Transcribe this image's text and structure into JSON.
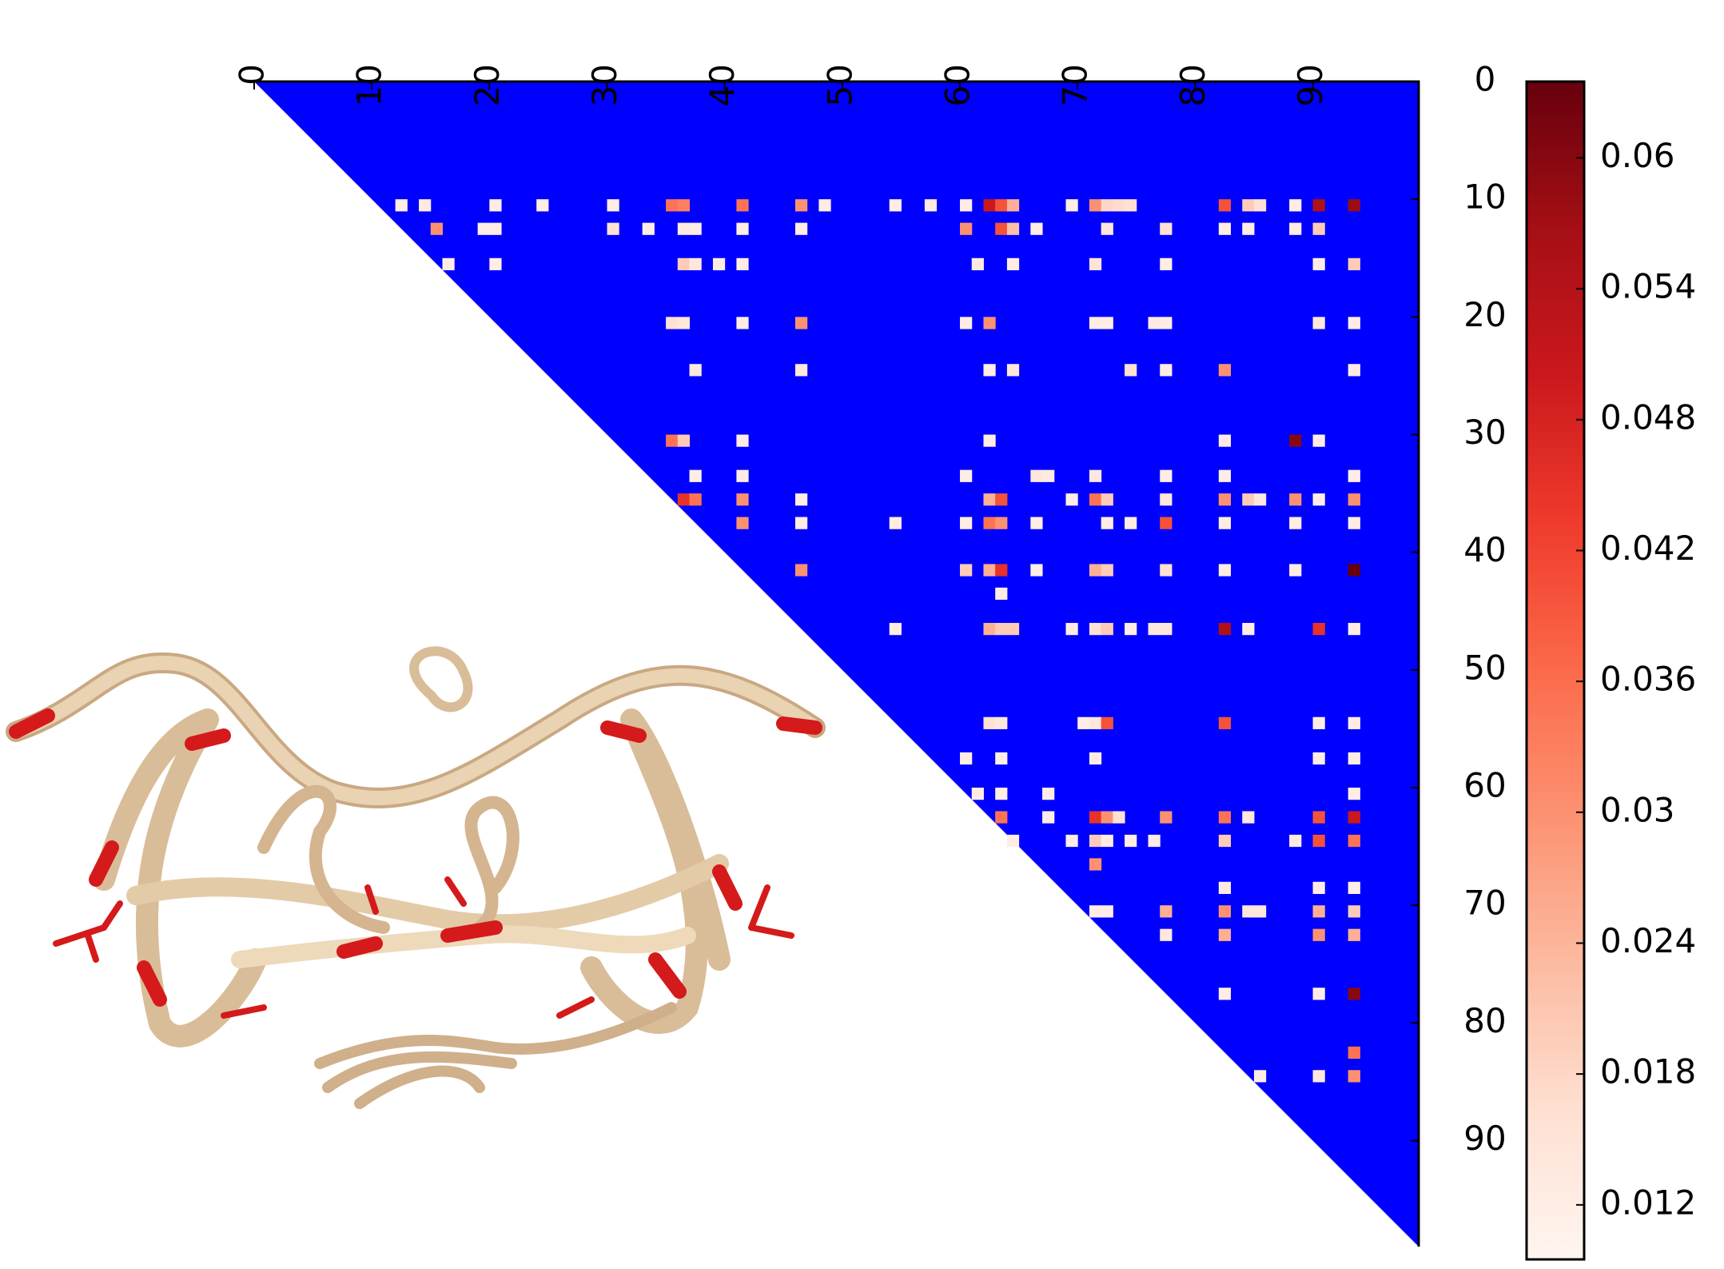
{
  "chart_data": {
    "type": "triangular-heatmap",
    "xlim": [
      0,
      99
    ],
    "ylim": [
      0,
      99
    ],
    "xticks": [
      0,
      10,
      20,
      30,
      40,
      50,
      60,
      70,
      80,
      90
    ],
    "yticks": [
      0,
      10,
      20,
      30,
      40,
      50,
      60,
      70,
      80,
      90
    ],
    "background_color": "#0000ff",
    "colormap": [
      "#fff5f0",
      "#fee0d2",
      "#fcbba1",
      "#fc9272",
      "#fb6a4a",
      "#ef3b2c",
      "#cb181d",
      "#a50f15",
      "#67000d"
    ],
    "clim": [
      0.0095,
      0.0635
    ],
    "cticks": [
      0.012,
      0.018,
      0.024,
      0.03,
      0.036,
      0.042,
      0.048,
      0.054,
      0.06
    ],
    "cells": [
      [
        10,
        12,
        0.012
      ],
      [
        10,
        14,
        0.013
      ],
      [
        10,
        20,
        0.012
      ],
      [
        10,
        24,
        0.012
      ],
      [
        10,
        30,
        0.012
      ],
      [
        10,
        35,
        0.035
      ],
      [
        10,
        36,
        0.033
      ],
      [
        10,
        41,
        0.035
      ],
      [
        10,
        46,
        0.03
      ],
      [
        10,
        48,
        0.012
      ],
      [
        10,
        54,
        0.012
      ],
      [
        10,
        57,
        0.013
      ],
      [
        10,
        60,
        0.012
      ],
      [
        10,
        62,
        0.05
      ],
      [
        10,
        63,
        0.04
      ],
      [
        10,
        64,
        0.025
      ],
      [
        10,
        69,
        0.012
      ],
      [
        10,
        71,
        0.03
      ],
      [
        10,
        72,
        0.018
      ],
      [
        10,
        73,
        0.017
      ],
      [
        10,
        74,
        0.016
      ],
      [
        10,
        82,
        0.04
      ],
      [
        10,
        84,
        0.02
      ],
      [
        10,
        85,
        0.016
      ],
      [
        10,
        88,
        0.012
      ],
      [
        10,
        90,
        0.055
      ],
      [
        10,
        93,
        0.058
      ],
      [
        12,
        15,
        0.03
      ],
      [
        12,
        19,
        0.012
      ],
      [
        12,
        20,
        0.012
      ],
      [
        12,
        30,
        0.016
      ],
      [
        12,
        33,
        0.012
      ],
      [
        12,
        36,
        0.013
      ],
      [
        12,
        37,
        0.012
      ],
      [
        12,
        41,
        0.012
      ],
      [
        12,
        46,
        0.012
      ],
      [
        12,
        60,
        0.03
      ],
      [
        12,
        63,
        0.04
      ],
      [
        12,
        64,
        0.022
      ],
      [
        12,
        66,
        0.012
      ],
      [
        12,
        72,
        0.014
      ],
      [
        12,
        77,
        0.016
      ],
      [
        12,
        82,
        0.012
      ],
      [
        12,
        84,
        0.012
      ],
      [
        12,
        88,
        0.012
      ],
      [
        12,
        90,
        0.02
      ],
      [
        15,
        16,
        0.012
      ],
      [
        15,
        20,
        0.012
      ],
      [
        15,
        36,
        0.02
      ],
      [
        15,
        37,
        0.014
      ],
      [
        15,
        39,
        0.013
      ],
      [
        15,
        41,
        0.012
      ],
      [
        15,
        61,
        0.013
      ],
      [
        15,
        64,
        0.012
      ],
      [
        15,
        71,
        0.015
      ],
      [
        15,
        77,
        0.012
      ],
      [
        15,
        90,
        0.012
      ],
      [
        15,
        93,
        0.02
      ],
      [
        20,
        35,
        0.016
      ],
      [
        20,
        36,
        0.014
      ],
      [
        20,
        41,
        0.012
      ],
      [
        20,
        46,
        0.03
      ],
      [
        20,
        60,
        0.012
      ],
      [
        20,
        62,
        0.03
      ],
      [
        20,
        71,
        0.012
      ],
      [
        20,
        72,
        0.012
      ],
      [
        20,
        76,
        0.013
      ],
      [
        20,
        77,
        0.012
      ],
      [
        20,
        90,
        0.014
      ],
      [
        20,
        93,
        0.012
      ],
      [
        24,
        37,
        0.014
      ],
      [
        24,
        46,
        0.014
      ],
      [
        24,
        62,
        0.012
      ],
      [
        24,
        64,
        0.014
      ],
      [
        24,
        74,
        0.016
      ],
      [
        24,
        77,
        0.012
      ],
      [
        24,
        82,
        0.03
      ],
      [
        24,
        93,
        0.012
      ],
      [
        30,
        35,
        0.035
      ],
      [
        30,
        36,
        0.02
      ],
      [
        30,
        41,
        0.012
      ],
      [
        30,
        62,
        0.012
      ],
      [
        30,
        82,
        0.012
      ],
      [
        30,
        88,
        0.06
      ],
      [
        30,
        90,
        0.012
      ],
      [
        33,
        37,
        0.012
      ],
      [
        33,
        41,
        0.012
      ],
      [
        33,
        60,
        0.012
      ],
      [
        33,
        66,
        0.014
      ],
      [
        33,
        67,
        0.013
      ],
      [
        33,
        71,
        0.014
      ],
      [
        33,
        77,
        0.012
      ],
      [
        33,
        82,
        0.012
      ],
      [
        33,
        93,
        0.012
      ],
      [
        35,
        36,
        0.045
      ],
      [
        35,
        37,
        0.035
      ],
      [
        35,
        41,
        0.03
      ],
      [
        35,
        46,
        0.012
      ],
      [
        35,
        62,
        0.025
      ],
      [
        35,
        63,
        0.04
      ],
      [
        35,
        69,
        0.012
      ],
      [
        35,
        71,
        0.035
      ],
      [
        35,
        72,
        0.02
      ],
      [
        35,
        77,
        0.014
      ],
      [
        35,
        82,
        0.03
      ],
      [
        35,
        84,
        0.02
      ],
      [
        35,
        85,
        0.014
      ],
      [
        35,
        88,
        0.03
      ],
      [
        35,
        90,
        0.012
      ],
      [
        35,
        93,
        0.03
      ],
      [
        37,
        41,
        0.03
      ],
      [
        37,
        46,
        0.012
      ],
      [
        37,
        54,
        0.012
      ],
      [
        37,
        60,
        0.012
      ],
      [
        37,
        62,
        0.035
      ],
      [
        37,
        63,
        0.03
      ],
      [
        37,
        66,
        0.012
      ],
      [
        37,
        72,
        0.012
      ],
      [
        37,
        74,
        0.012
      ],
      [
        37,
        77,
        0.04
      ],
      [
        37,
        82,
        0.012
      ],
      [
        37,
        88,
        0.012
      ],
      [
        37,
        93,
        0.012
      ],
      [
        41,
        46,
        0.03
      ],
      [
        41,
        60,
        0.02
      ],
      [
        41,
        62,
        0.025
      ],
      [
        41,
        63,
        0.045
      ],
      [
        41,
        66,
        0.012
      ],
      [
        41,
        71,
        0.025
      ],
      [
        41,
        72,
        0.02
      ],
      [
        41,
        77,
        0.016
      ],
      [
        41,
        82,
        0.012
      ],
      [
        41,
        88,
        0.012
      ],
      [
        41,
        93,
        0.064
      ],
      [
        43,
        63,
        0.012
      ],
      [
        46,
        54,
        0.012
      ],
      [
        46,
        62,
        0.025
      ],
      [
        46,
        63,
        0.02
      ],
      [
        46,
        64,
        0.02
      ],
      [
        46,
        69,
        0.012
      ],
      [
        46,
        71,
        0.016
      ],
      [
        46,
        72,
        0.02
      ],
      [
        46,
        74,
        0.012
      ],
      [
        46,
        76,
        0.014
      ],
      [
        46,
        77,
        0.014
      ],
      [
        46,
        82,
        0.055
      ],
      [
        46,
        84,
        0.012
      ],
      [
        46,
        90,
        0.045
      ],
      [
        46,
        93,
        0.012
      ],
      [
        54,
        62,
        0.016
      ],
      [
        54,
        63,
        0.014
      ],
      [
        54,
        70,
        0.012
      ],
      [
        54,
        71,
        0.014
      ],
      [
        54,
        72,
        0.04
      ],
      [
        54,
        82,
        0.04
      ],
      [
        54,
        90,
        0.012
      ],
      [
        54,
        93,
        0.012
      ],
      [
        57,
        60,
        0.012
      ],
      [
        57,
        63,
        0.012
      ],
      [
        57,
        71,
        0.012
      ],
      [
        57,
        90,
        0.012
      ],
      [
        57,
        93,
        0.012
      ],
      [
        60,
        61,
        0.012
      ],
      [
        60,
        63,
        0.012
      ],
      [
        60,
        67,
        0.012
      ],
      [
        60,
        93,
        0.012
      ],
      [
        62,
        63,
        0.035
      ],
      [
        62,
        67,
        0.012
      ],
      [
        62,
        71,
        0.045
      ],
      [
        62,
        72,
        0.03
      ],
      [
        62,
        73,
        0.016
      ],
      [
        62,
        77,
        0.03
      ],
      [
        62,
        82,
        0.035
      ],
      [
        62,
        84,
        0.014
      ],
      [
        62,
        90,
        0.04
      ],
      [
        62,
        93,
        0.05
      ],
      [
        64,
        64,
        0.012
      ],
      [
        64,
        69,
        0.012
      ],
      [
        64,
        71,
        0.02
      ],
      [
        64,
        72,
        0.012
      ],
      [
        64,
        74,
        0.012
      ],
      [
        64,
        76,
        0.012
      ],
      [
        64,
        82,
        0.02
      ],
      [
        64,
        88,
        0.012
      ],
      [
        64,
        90,
        0.04
      ],
      [
        64,
        93,
        0.035
      ],
      [
        66,
        71,
        0.03
      ],
      [
        68,
        82,
        0.012
      ],
      [
        68,
        90,
        0.012
      ],
      [
        68,
        93,
        0.012
      ],
      [
        70,
        71,
        0.012
      ],
      [
        70,
        72,
        0.012
      ],
      [
        70,
        77,
        0.025
      ],
      [
        70,
        82,
        0.03
      ],
      [
        70,
        84,
        0.014
      ],
      [
        70,
        85,
        0.014
      ],
      [
        70,
        90,
        0.025
      ],
      [
        70,
        93,
        0.02
      ],
      [
        72,
        77,
        0.014
      ],
      [
        72,
        82,
        0.025
      ],
      [
        72,
        90,
        0.03
      ],
      [
        72,
        93,
        0.025
      ],
      [
        77,
        82,
        0.012
      ],
      [
        77,
        90,
        0.012
      ],
      [
        77,
        93,
        0.06
      ],
      [
        82,
        93,
        0.035
      ],
      [
        84,
        85,
        0.012
      ],
      [
        84,
        90,
        0.014
      ],
      [
        84,
        93,
        0.03
      ]
    ]
  }
}
